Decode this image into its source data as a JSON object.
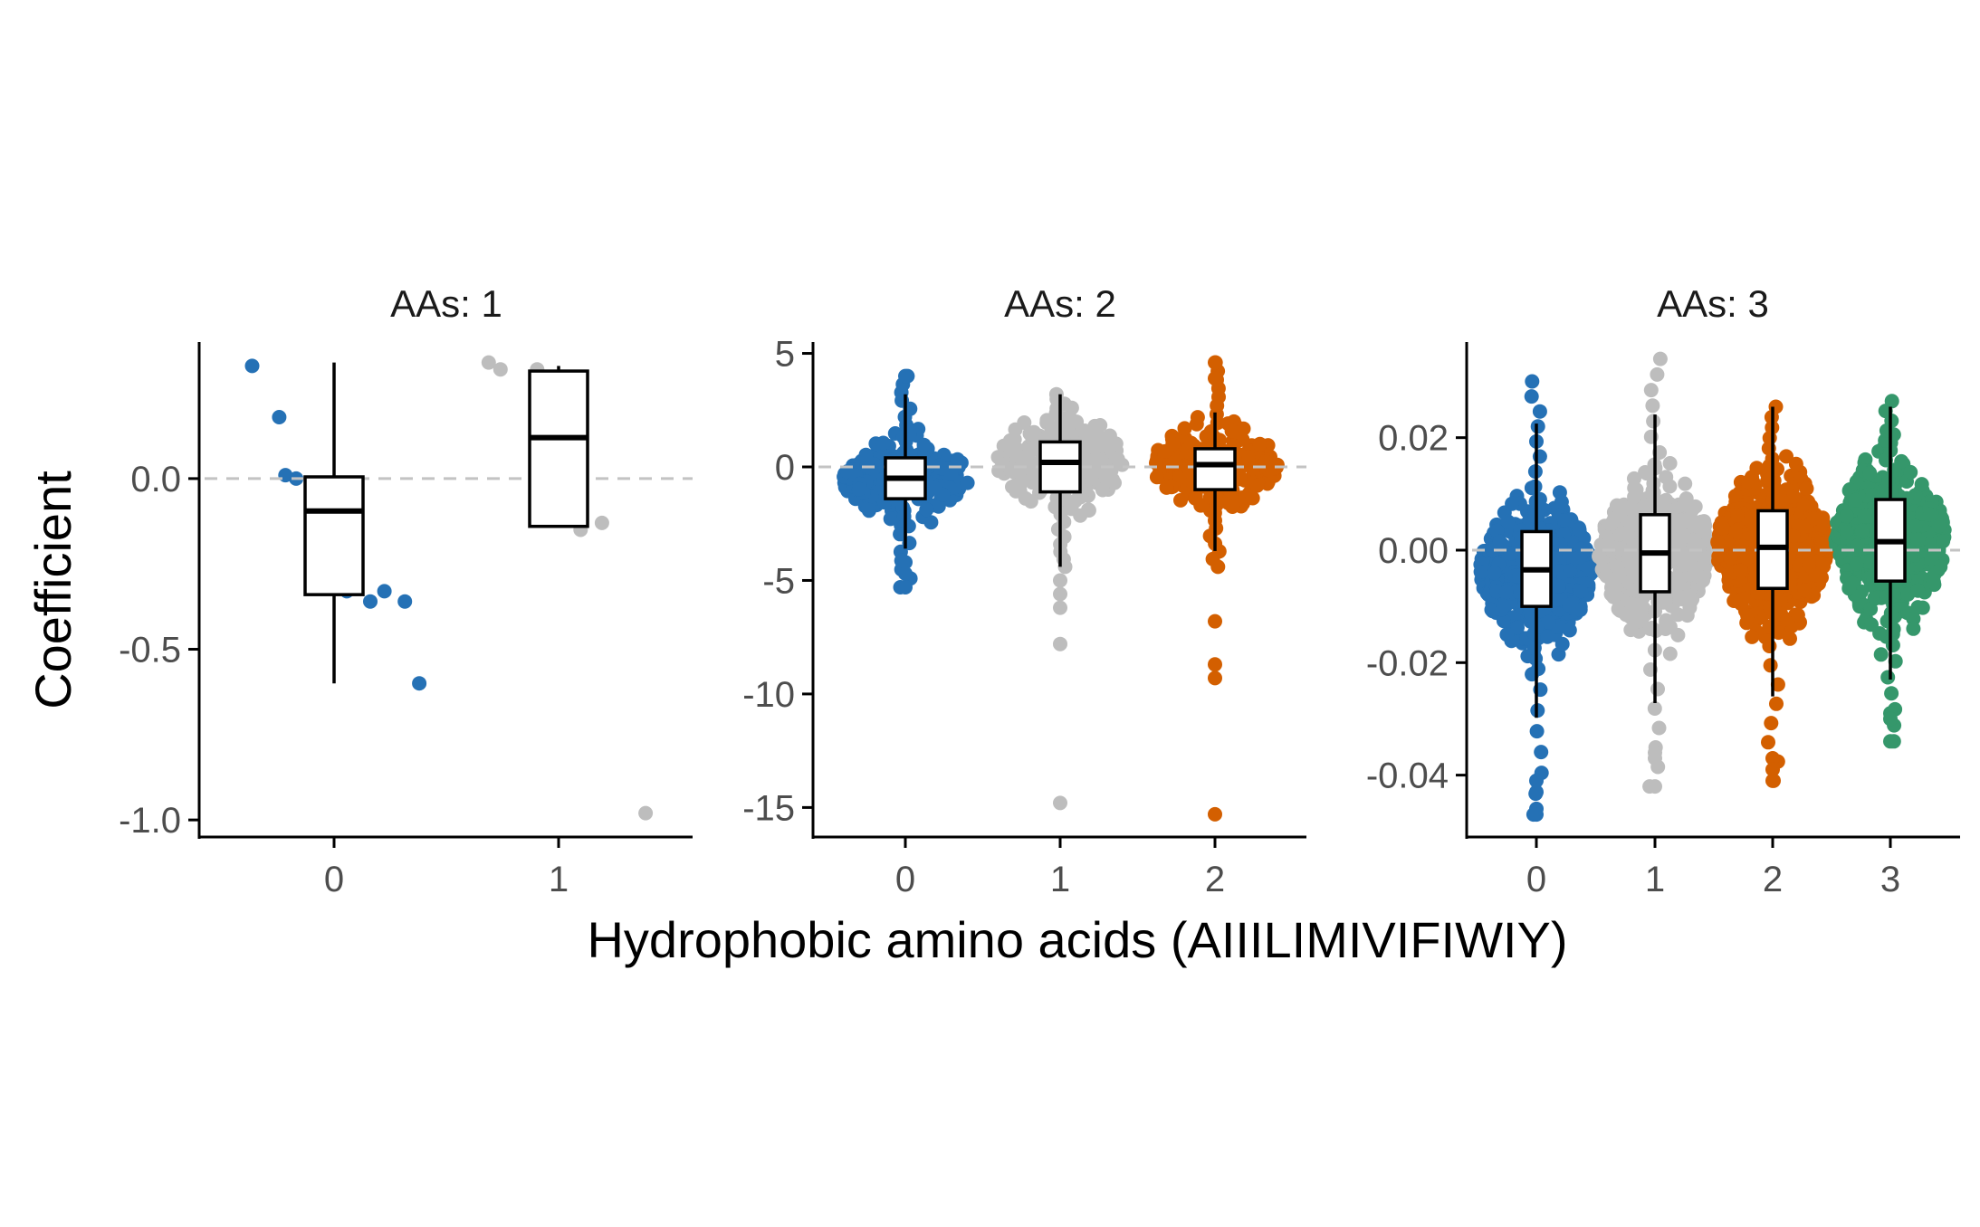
{
  "figure": {
    "ylabel": "Coefficient",
    "xlabel": "Hydrophobic amino acids (AIIILIMIVIFIWIY)"
  },
  "colors": {
    "0": "#2571b5",
    "1": "#bdbdbd",
    "2": "#d35f00",
    "3": "#35976b",
    "zero_line": "#c3c3c3",
    "box_fill": "#ffffff",
    "box_stroke": "#000000"
  },
  "chart_data": [
    {
      "type": "box_with_beeswarm",
      "title": "AAs: 1",
      "categories": [
        "0",
        "1"
      ],
      "ylim": [
        -1.05,
        0.4
      ],
      "yticks": [
        0.0,
        -0.5,
        -1.0
      ],
      "ytick_labels": [
        "0.0",
        "-0.5",
        "-1.0"
      ],
      "reference_line": 0,
      "boxes": [
        {
          "category": "0",
          "min": -0.6,
          "q1": -0.34,
          "median": -0.095,
          "q3": 0.005,
          "max": 0.34
        },
        {
          "category": "1",
          "min": -0.14,
          "q1": -0.14,
          "median": 0.12,
          "q3": 0.315,
          "max": 0.33
        }
      ],
      "points": [
        {
          "category": "0",
          "values": [
            0.33,
            0.18,
            0.01,
            0.0,
            -0.07,
            -0.09,
            -0.33,
            -0.36,
            -0.33,
            -0.36,
            -0.6
          ]
        },
        {
          "category": "1",
          "values": [
            0.34,
            0.32,
            0.32,
            -0.02,
            -0.15,
            -0.13,
            -0.98
          ]
        }
      ]
    },
    {
      "type": "box_with_beeswarm",
      "title": "AAs: 2",
      "categories": [
        "0",
        "1",
        "2"
      ],
      "ylim": [
        -16.3,
        5.5
      ],
      "yticks": [
        5,
        0,
        -5,
        -10,
        -15
      ],
      "ytick_labels": [
        "5",
        "0",
        "-5",
        "-10",
        "-15"
      ],
      "reference_line": 0,
      "boxes": [
        {
          "category": "0",
          "min": -3.6,
          "q1": -1.4,
          "median": -0.5,
          "q3": 0.4,
          "max": 3.2
        },
        {
          "category": "1",
          "min": -4.4,
          "q1": -1.1,
          "median": 0.2,
          "q3": 1.1,
          "max": 3.2
        },
        {
          "category": "2",
          "min": -3.7,
          "q1": -1.0,
          "median": 0.1,
          "q3": 0.8,
          "max": 2.4
        }
      ],
      "points": [
        {
          "category": "0",
          "range": [
            -5.3,
            4.0
          ],
          "outliers": [
            4.0,
            -4.2,
            -4.7,
            -5.3
          ]
        },
        {
          "category": "1",
          "range": [
            -4.4,
            3.2
          ],
          "outliers": [
            -5.0,
            -5.6,
            -6.2,
            -7.8,
            -14.8
          ]
        },
        {
          "category": "2",
          "range": [
            -4.4,
            4.6
          ],
          "outliers": [
            4.6,
            3.9,
            -6.8,
            -8.7,
            -9.3,
            -15.3
          ]
        }
      ]
    },
    {
      "type": "box_with_beeswarm",
      "title": "AAs: 3",
      "categories": [
        "0",
        "1",
        "2",
        "3"
      ],
      "ylim": [
        -0.051,
        0.037
      ],
      "yticks": [
        0.02,
        0.0,
        -0.02,
        -0.04
      ],
      "ytick_labels": [
        "0.02",
        "0.00",
        "-0.02",
        "-0.04"
      ],
      "reference_line": 0,
      "boxes": [
        {
          "category": "0",
          "min": -0.0298,
          "q1": -0.01,
          "median": -0.0035,
          "q3": 0.0033,
          "max": 0.0225
        },
        {
          "category": "1",
          "min": -0.0272,
          "q1": -0.0074,
          "median": -0.0005,
          "q3": 0.0063,
          "max": 0.0241
        },
        {
          "category": "2",
          "min": -0.026,
          "q1": -0.0068,
          "median": 0.0005,
          "q3": 0.007,
          "max": 0.0255
        },
        {
          "category": "3",
          "min": -0.023,
          "q1": -0.0055,
          "median": 0.0015,
          "q3": 0.009,
          "max": 0.0255
        }
      ],
      "points": [
        {
          "category": "0",
          "range": [
            -0.047,
            0.03
          ],
          "outliers": [
            -0.041,
            -0.043,
            -0.046,
            -0.047
          ]
        },
        {
          "category": "1",
          "range": [
            -0.042,
            0.034
          ],
          "outliers": [
            -0.036,
            -0.037,
            -0.042
          ]
        },
        {
          "category": "2",
          "range": [
            -0.041,
            0.0255
          ],
          "outliers": [
            -0.037,
            -0.039,
            -0.041
          ]
        },
        {
          "category": "3",
          "range": [
            -0.034,
            0.0265
          ],
          "outliers": [
            -0.029,
            -0.03,
            -0.034
          ]
        }
      ]
    }
  ]
}
